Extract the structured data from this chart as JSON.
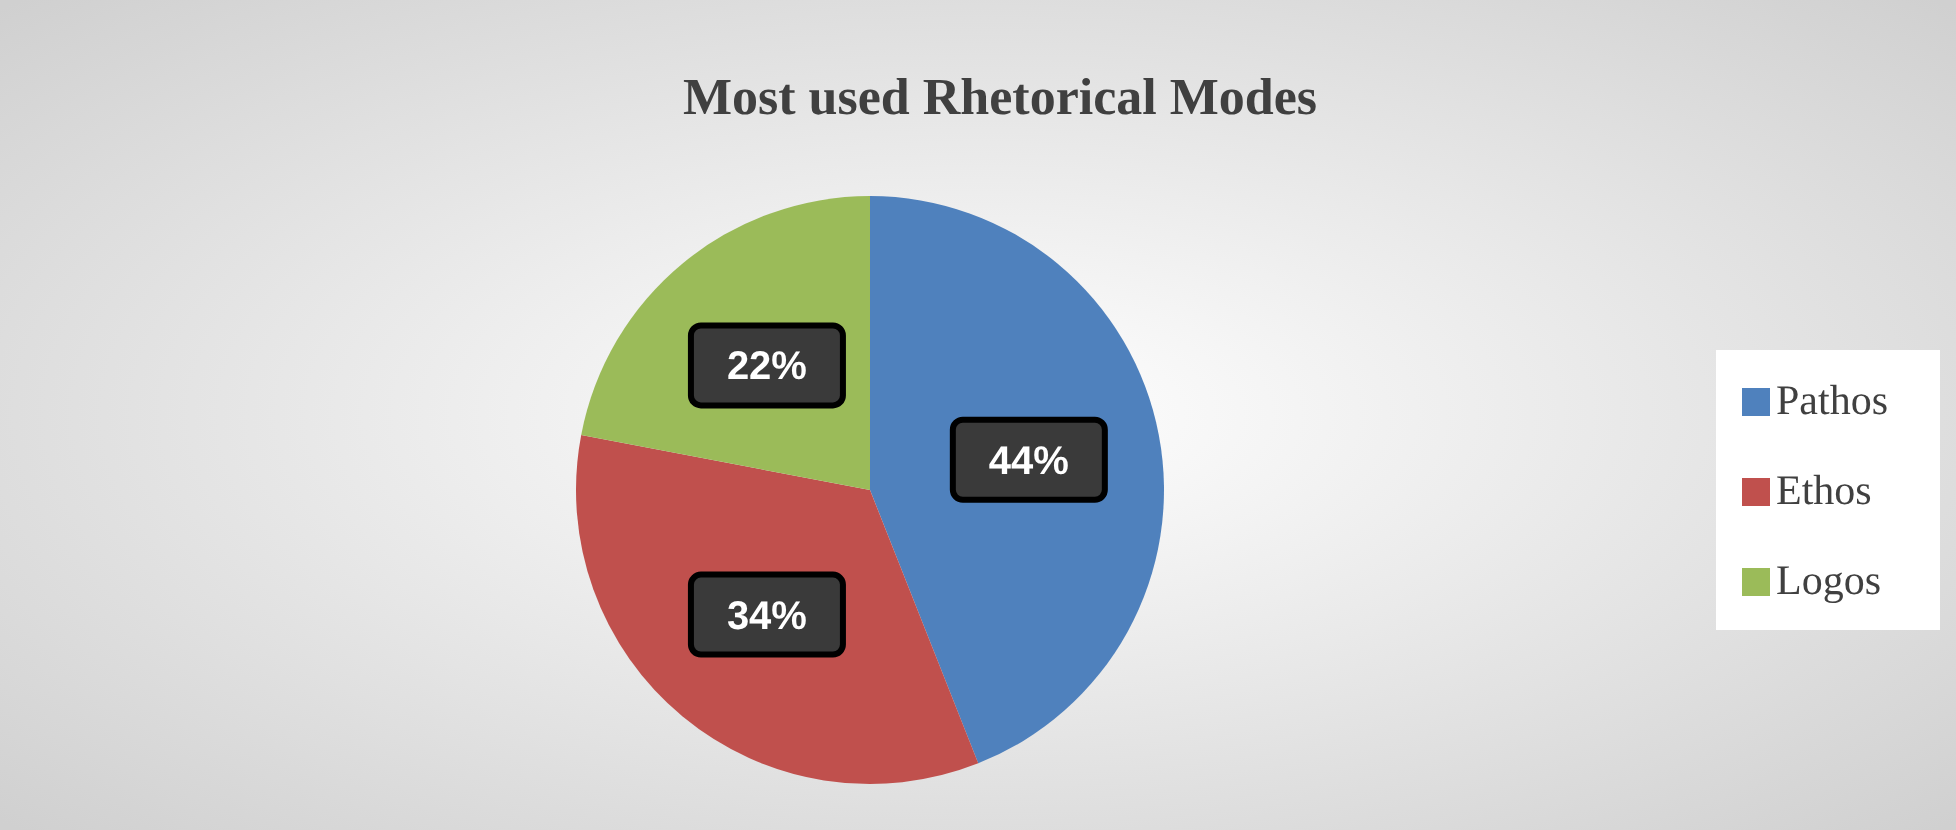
{
  "chart_data": {
    "type": "pie",
    "title": "Most used Rhetorical Modes",
    "categories": [
      "Pathos",
      "Ethos",
      "Logos"
    ],
    "values": [
      44,
      34,
      22
    ],
    "colors": [
      "#4f81bd",
      "#c0504d",
      "#9bbb59"
    ],
    "value_labels": [
      "44%",
      "34%",
      "22%"
    ],
    "legend": "right"
  }
}
